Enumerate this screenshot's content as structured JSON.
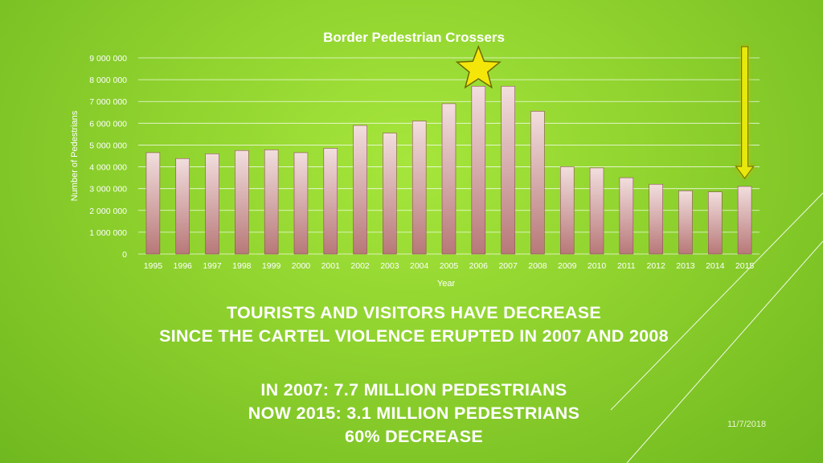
{
  "chart_data": {
    "type": "bar",
    "title": "Border Pedestrian Crossers",
    "xlabel": "Year",
    "ylabel": "Number of Pedestrians",
    "categories": [
      "1995",
      "1996",
      "1997",
      "1998",
      "1999",
      "2000",
      "2001",
      "2002",
      "2003",
      "2004",
      "2005",
      "2006",
      "2007",
      "2008",
      "2009",
      "2010",
      "2011",
      "2012",
      "2013",
      "2014",
      "2015"
    ],
    "series": [
      {
        "name": "",
        "values": [
          4650000,
          4380000,
          4600000,
          4750000,
          4780000,
          4650000,
          4850000,
          5900000,
          5550000,
          6100000,
          6900000,
          7700000,
          7700000,
          6550000,
          4000000,
          3950000,
          3500000,
          3200000,
          2900000,
          2850000,
          3100000
        ]
      }
    ],
    "ylim": [
      0,
      9000000
    ],
    "yticks": [
      "0",
      "1 000 000",
      "2 000 000",
      "3 000 000",
      "4 000 000",
      "5 000 000",
      "6 000 000",
      "7 000 000",
      "8 000 000",
      "9 000 000"
    ],
    "grid": true,
    "legend": "none",
    "annotations": [
      {
        "type": "star",
        "category": "2006",
        "color": "#f5e60a"
      },
      {
        "type": "down-arrow",
        "category": "2015",
        "color": "#e8e80a"
      }
    ],
    "bar_color": "#d8a0a0"
  },
  "caption": {
    "line1": "TOURISTS  AND VISITORS HAVE DECREASE",
    "line2": "SINCE THE CARTEL VIOLENCE ERUPTED IN 2007 AND 2008",
    "line3": "IN 2007: 7.7 MILLION PEDESTRIANS",
    "line4": "NOW 2015: 3.1 MILLION PEDESTRIANS",
    "line5": "60% DECREASE"
  },
  "slide_date": "11/7/2018"
}
